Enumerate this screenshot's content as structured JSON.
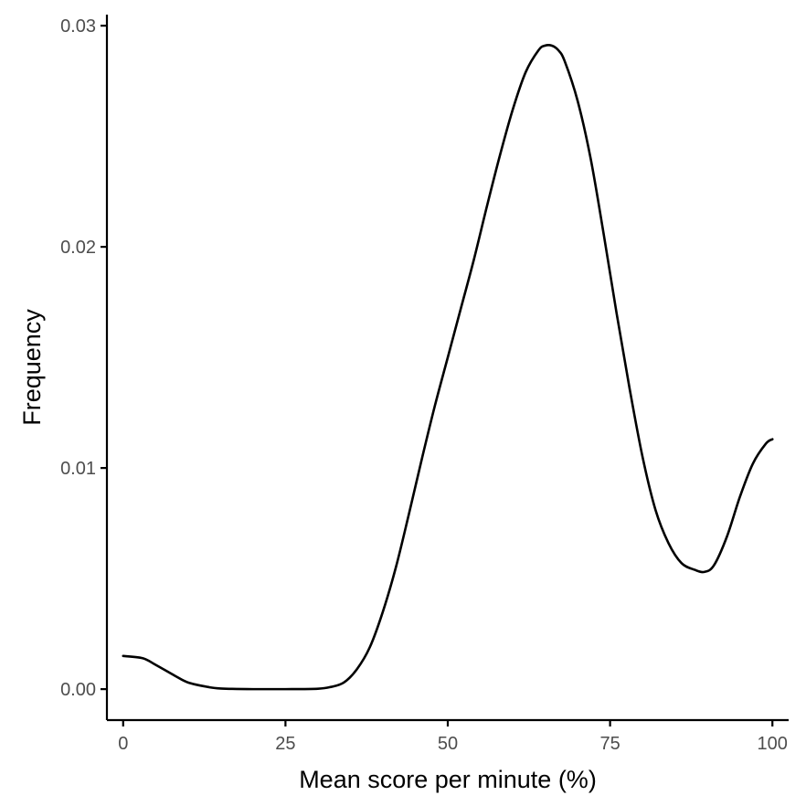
{
  "chart_data": {
    "type": "line",
    "title": "",
    "xlabel": "Mean score per minute (%)",
    "ylabel": "Frequency",
    "xlim": [
      -2.5,
      102.5
    ],
    "ylim": [
      -0.0014,
      0.0305
    ],
    "x_ticks": [
      0,
      25,
      50,
      75,
      100
    ],
    "x_tick_labels": [
      "0",
      "25",
      "50",
      "75",
      "100"
    ],
    "y_ticks": [
      0.0,
      0.01,
      0.02,
      0.03
    ],
    "y_tick_labels": [
      "0.00",
      "0.01",
      "0.02",
      "0.03"
    ],
    "grid": false,
    "legend": "none",
    "line_color": "#000000",
    "series": [
      {
        "x": [
          0,
          3,
          5,
          8,
          10,
          13,
          15,
          20,
          25,
          30,
          32,
          34,
          36,
          38,
          40,
          42,
          44,
          46,
          48,
          50,
          52,
          54,
          56,
          58,
          60,
          62,
          64,
          65,
          66,
          67,
          68,
          70,
          72,
          74,
          76,
          78,
          80,
          82,
          84,
          86,
          88,
          89.5,
          91,
          93,
          95,
          97,
          99,
          100
        ],
        "y": [
          0.0015,
          0.0014,
          0.0011,
          0.0006,
          0.0003,
          0.0001,
          3e-05,
          0.0,
          0.0,
          2e-05,
          0.0001,
          0.0003,
          0.0009,
          0.0019,
          0.0035,
          0.0055,
          0.0079,
          0.0104,
          0.0128,
          0.015,
          0.0172,
          0.0194,
          0.0218,
          0.0241,
          0.0262,
          0.0279,
          0.0289,
          0.0291,
          0.0291,
          0.0289,
          0.0284,
          0.0266,
          0.024,
          0.0206,
          0.017,
          0.0136,
          0.0105,
          0.0081,
          0.0066,
          0.0057,
          0.0054,
          0.0053,
          0.0056,
          0.0069,
          0.0087,
          0.0102,
          0.0111,
          0.0113
        ]
      }
    ]
  }
}
